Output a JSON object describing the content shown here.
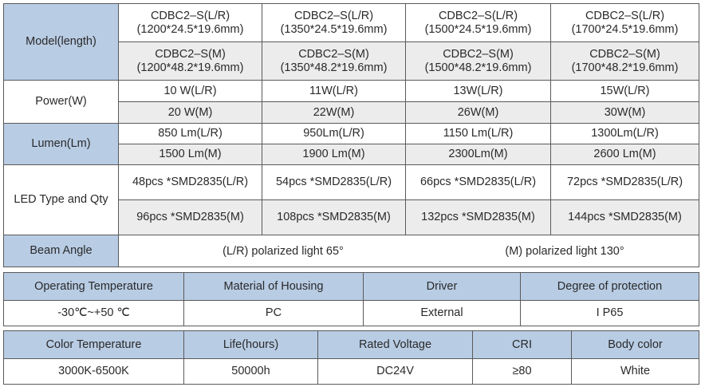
{
  "spec_table": {
    "rows": [
      {
        "label": "Model(length)",
        "top": [
          "CDBC2–S(L/R)\n(1200*24.5*19.6mm)",
          "CDBC2–S(L/R)\n(1350*24.5*19.6mm)",
          "CDBC2–S(L/R)\n(1500*24.5*19.6mm)",
          "CDBC2–S(L/R)\n(1700*24.5*19.6mm)"
        ],
        "bottom": [
          "CDBC2–S(M)\n(1200*48.2*19.6mm)",
          "CDBC2–S(M)\n(1350*48.2*19.6mm)",
          "CDBC2–S(M)\n(1500*48.2*19.6mm)",
          "CDBC2–S(M)\n(1700*48.2*19.6mm)"
        ]
      },
      {
        "label": "Power(W)",
        "top": [
          "10 W(L/R)",
          "11W(L/R)",
          "13W(L/R)",
          "15W(L/R)"
        ],
        "bottom": [
          "20 W(M)",
          "22W(M)",
          "26W(M)",
          "30W(M)"
        ]
      },
      {
        "label": "Lumen(Lm)",
        "top": [
          "850 Lm(L/R)",
          "950Lm(L/R)",
          "1150 Lm(L/R)",
          "1300Lm(L/R)"
        ],
        "bottom": [
          "1500 Lm(M)",
          "1900 Lm(M)",
          "2300Lm(M)",
          "2600 Lm(M)"
        ]
      },
      {
        "label": "LED Type and Qty",
        "top": [
          "48pcs *SMD2835(L/R)",
          "54pcs *SMD2835(L/R)",
          "66pcs *SMD2835(L/R)",
          "72pcs *SMD2835(L/R)"
        ],
        "bottom": [
          "96pcs *SMD2835(M)",
          "108pcs *SMD2835(M)",
          "132pcs *SMD2835(M)",
          "144pcs *SMD2835(M)"
        ]
      }
    ],
    "beam": {
      "label": "Beam Angle",
      "values": [
        "(L/R) polarized light 65°",
        "(M) polarized light 130°"
      ]
    }
  },
  "table2": {
    "headers": [
      "Operating Temperature",
      "Material of Housing",
      "Driver",
      "Degree of protection"
    ],
    "values": [
      "-30℃~+50 ℃",
      "PC",
      "External",
      "I P65"
    ]
  },
  "table3": {
    "headers": [
      "Color Temperature",
      "Life(hours)",
      "Rated Voltage",
      "CRI",
      "Body color"
    ],
    "values": [
      "3000K-6500K",
      "50000h",
      "DC24V",
      "≥80",
      "White"
    ]
  }
}
